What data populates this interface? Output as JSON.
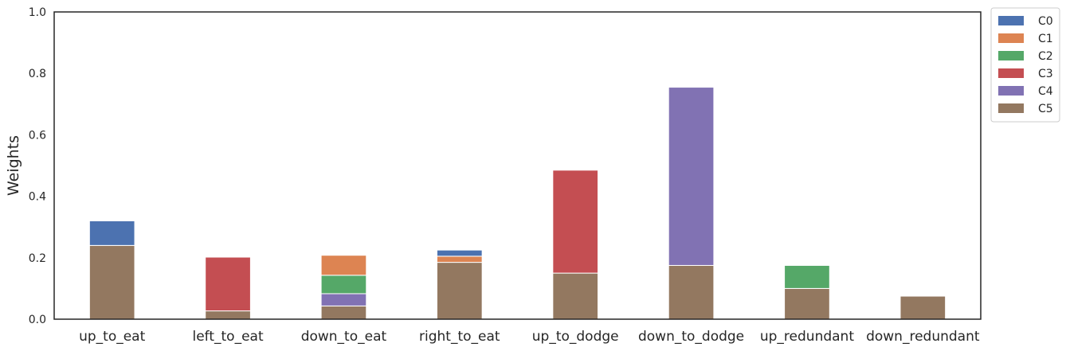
{
  "chart_data": {
    "type": "bar",
    "stacked": true,
    "title": "",
    "xlabel": "",
    "ylabel": "Weights",
    "ylim": [
      0,
      1.0
    ],
    "yticks": [
      "0.0",
      "0.2",
      "0.4",
      "0.6",
      "0.8",
      "1.0"
    ],
    "grid": false,
    "legend_position": "outside-top-right",
    "categories": [
      "up_to_eat",
      "left_to_eat",
      "down_to_eat",
      "right_to_eat",
      "up_to_dodge",
      "down_to_dodge",
      "up_redundant",
      "down_redundant"
    ],
    "stack_order": [
      "C5",
      "C4",
      "C3",
      "C2",
      "C1",
      "C0"
    ],
    "series": [
      {
        "name": "C0",
        "color": "#4c72b0",
        "values": [
          0.08,
          0,
          0,
          0.02,
          0,
          0,
          0,
          0
        ]
      },
      {
        "name": "C1",
        "color": "#dd8452",
        "values": [
          0,
          0,
          0.065,
          0.02,
          0,
          0,
          0,
          0
        ]
      },
      {
        "name": "C2",
        "color": "#55a868",
        "values": [
          0,
          0,
          0.06,
          0,
          0,
          0,
          0.075,
          0
        ]
      },
      {
        "name": "C3",
        "color": "#c44e52",
        "values": [
          0,
          0.175,
          0,
          0,
          0.335,
          0,
          0,
          0
        ]
      },
      {
        "name": "C4",
        "color": "#8172b3",
        "values": [
          0,
          0,
          0.04,
          0,
          0,
          0.58,
          0,
          0
        ]
      },
      {
        "name": "C5",
        "color": "#937860",
        "values": [
          0.24,
          0.027,
          0.043,
          0.185,
          0.15,
          0.175,
          0.1,
          0.075
        ]
      }
    ]
  }
}
